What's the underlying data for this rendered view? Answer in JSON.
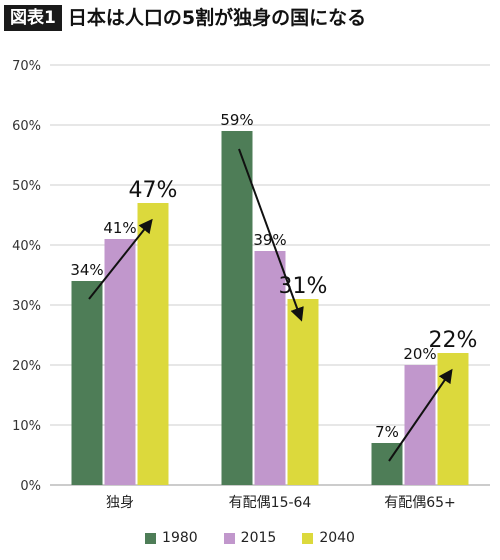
{
  "figure": {
    "badge": "図表1",
    "title": "日本は人口の5割が独身の国になる"
  },
  "chart_data": {
    "type": "bar",
    "categories": [
      "独身",
      "有配偶15-64",
      "有配偶65+"
    ],
    "series": [
      {
        "name": "1980",
        "values": [
          34,
          59,
          7
        ],
        "color": "#4e7d57"
      },
      {
        "name": "2015",
        "values": [
          41,
          39,
          20
        ],
        "color": "#c197cc"
      },
      {
        "name": "2040",
        "values": [
          47,
          31,
          22
        ],
        "color": "#dcd93c"
      }
    ],
    "data_labels": [
      [
        "34%",
        "41%",
        "47%"
      ],
      [
        "59%",
        "39%",
        "31%"
      ],
      [
        "7%",
        "20%",
        "22%"
      ]
    ],
    "y_ticks": [
      "0%",
      "10%",
      "20%",
      "30%",
      "40%",
      "50%",
      "60%",
      "70%"
    ],
    "ylim": [
      0,
      70
    ],
    "grid": true,
    "legend_position": "bottom",
    "trend_arrows": true
  }
}
